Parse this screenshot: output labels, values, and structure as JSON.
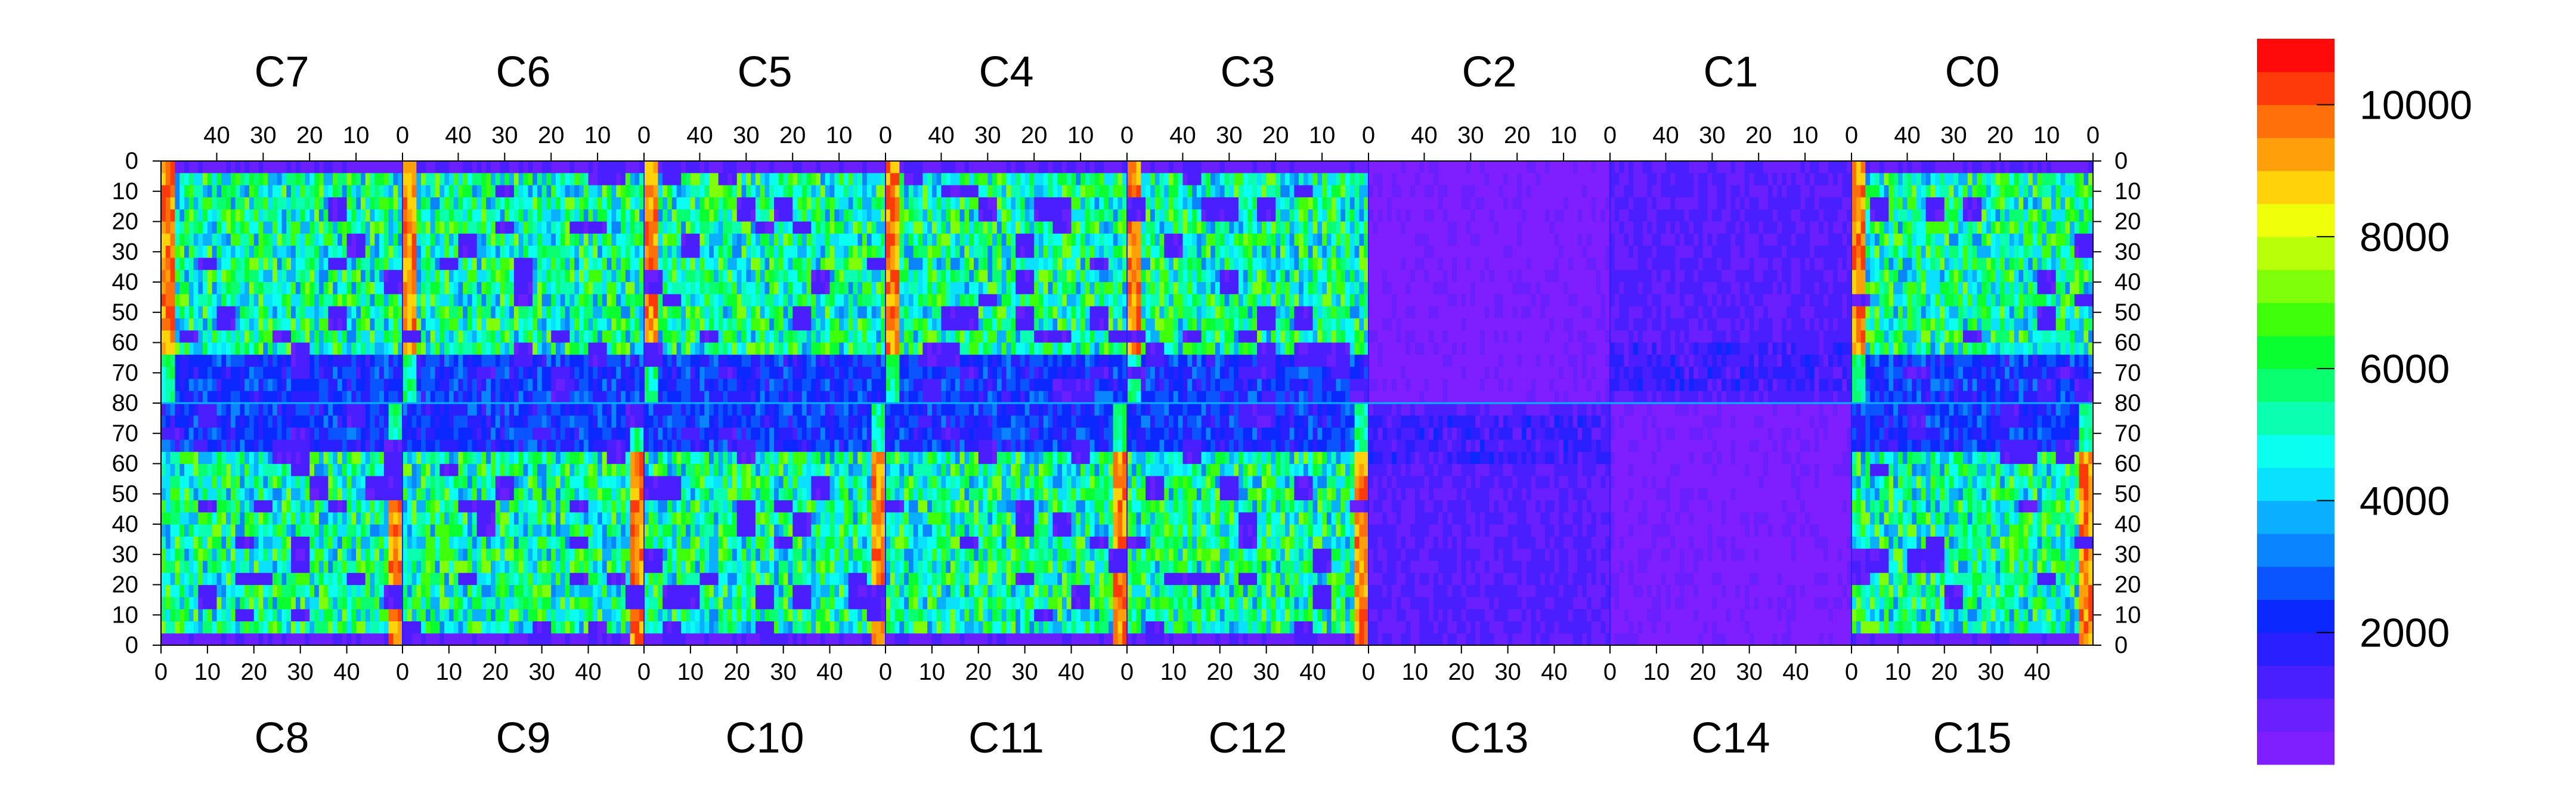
{
  "chart_data": {
    "type": "heatmap",
    "title": "",
    "xlabel": "",
    "ylabel": "",
    "top_chip_labels": [
      "C7",
      "C6",
      "C5",
      "C4",
      "C3",
      "C2",
      "C1",
      "C0"
    ],
    "bottom_chip_labels": [
      "C8",
      "C9",
      "C10",
      "C11",
      "C12",
      "C13",
      "C14",
      "C15"
    ],
    "top_x_tick_labels": [
      "40",
      "30",
      "20",
      "10",
      "0"
    ],
    "bottom_x_tick_labels": [
      "0",
      "10",
      "20",
      "30",
      "40"
    ],
    "top_x_tick_values": [
      40,
      30,
      20,
      10,
      0
    ],
    "bottom_x_tick_values": [
      0,
      10,
      20,
      30,
      40
    ],
    "columns_per_chip": 52,
    "rows_per_half": 80,
    "y_tick_labels": [
      "0",
      "10",
      "20",
      "30",
      "40",
      "50",
      "60",
      "70",
      "80",
      "70",
      "60",
      "50",
      "40",
      "30",
      "20",
      "10",
      "0"
    ],
    "colorbar": {
      "range": [
        0,
        11000
      ],
      "tick_labels": [
        "2000",
        "4000",
        "6000",
        "8000",
        "10000"
      ],
      "tick_values": [
        2000,
        4000,
        6000,
        8000,
        10000
      ],
      "colors": [
        "#7f1fff",
        "#6a1fff",
        "#4a1fff",
        "#2a1fff",
        "#0a28ff",
        "#0a55ff",
        "#0a85ff",
        "#0ab0ff",
        "#0ae0ff",
        "#0afff0",
        "#0affb0",
        "#0aff70",
        "#0aff30",
        "#40ff0a",
        "#80ff0a",
        "#b8ff0a",
        "#f0ff0a",
        "#ffd20a",
        "#ffa00a",
        "#ff700a",
        "#ff3a0a",
        "#ff0a0a"
      ]
    },
    "grid": false,
    "legend": "colorbar-right"
  }
}
